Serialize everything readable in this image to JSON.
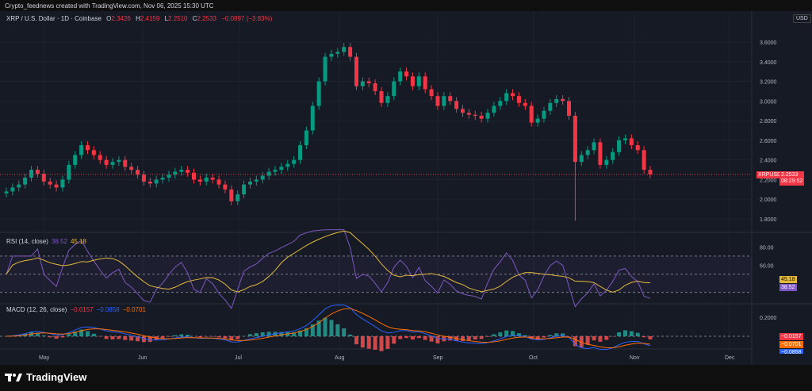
{
  "credit": "Crypto_feednews created with TradingView.com, Nov 06, 2025 15:30 UTC",
  "header": {
    "symbol": "XRP / U.S. Dollar · 1D · Coinbase",
    "o_label": "O",
    "o": "2.3426",
    "h_label": "H",
    "h": "2.4159",
    "l_label": "L",
    "l": "2.2510",
    "c_label": "C",
    "c": "2.2533",
    "change": "−0.0897 (−3.83%)",
    "currency": "USD"
  },
  "price_tag": {
    "symbol": "XRPUSD",
    "price": "2.2533",
    "countdown": "08:29:52"
  },
  "rsi": {
    "label": "RSI (14, close)",
    "value": "38.52",
    "ma": "45.18"
  },
  "macd": {
    "label": "MACD (12, 26, close)",
    "hist": "−0.0157",
    "macd": "−0.0858",
    "signal": "−0.0701"
  },
  "logo": "TradingView",
  "colors": {
    "up": "#089981",
    "down": "#f23645",
    "rsi": "#7e57c2",
    "rsi_ma": "#e2b93b",
    "macd": "#2962ff",
    "signal": "#ff6d00",
    "bg": "#161a25"
  },
  "chart_data": [
    {
      "type": "candlestick",
      "title": "XRP / U.S. Dollar · 1D · Coinbase",
      "ylim": [
        1.7,
        3.75
      ],
      "yticks": [
        "3.6000",
        "3.4000",
        "3.2000",
        "3.0000",
        "2.8000",
        "2.6000",
        "2.4000",
        "2.2000",
        "2.0000",
        "1.8000"
      ],
      "xticks": [
        "May",
        "Jun",
        "Jul",
        "Aug",
        "Sep",
        "Oct",
        "Nov",
        "Dec"
      ],
      "date_range": [
        "2025-04-24",
        "2025-11-06"
      ],
      "closes": [
        2.08,
        2.12,
        2.15,
        2.22,
        2.3,
        2.26,
        2.18,
        2.15,
        2.12,
        2.2,
        2.35,
        2.45,
        2.55,
        2.5,
        2.45,
        2.4,
        2.35,
        2.38,
        2.4,
        2.33,
        2.3,
        2.25,
        2.18,
        2.16,
        2.2,
        2.22,
        2.25,
        2.28,
        2.3,
        2.27,
        2.2,
        2.18,
        2.22,
        2.2,
        2.15,
        2.1,
        1.98,
        2.05,
        2.15,
        2.18,
        2.2,
        2.24,
        2.28,
        2.3,
        2.33,
        2.36,
        2.4,
        2.55,
        2.7,
        2.95,
        3.2,
        3.45,
        3.48,
        3.5,
        3.55,
        3.45,
        3.15,
        3.2,
        3.18,
        3.1,
        2.98,
        3.05,
        3.2,
        3.3,
        3.25,
        3.15,
        3.25,
        3.12,
        3.05,
        2.95,
        3.05,
        3.0,
        2.92,
        2.88,
        2.86,
        2.85,
        2.82,
        2.88,
        2.95,
        3.0,
        3.08,
        3.05,
        2.98,
        2.95,
        2.78,
        2.82,
        2.9,
        2.98,
        3.02,
        3.0,
        2.85,
        2.38,
        2.45,
        2.5,
        2.58,
        2.35,
        2.4,
        2.48,
        2.6,
        2.62,
        2.55,
        2.5,
        2.3,
        2.2533
      ],
      "notable_low": {
        "date": "2025-10-10",
        "value": 1.78
      }
    },
    {
      "type": "line",
      "title": "RSI (14, close)",
      "ylim": [
        20,
        90
      ],
      "yticks": [
        "80.00",
        "60.00"
      ],
      "bands": [
        30,
        70
      ],
      "last": [
        38.52,
        45.18
      ]
    },
    {
      "type": "bar+line",
      "title": "MACD (12, 26, close)",
      "yticks": [
        "0.2000"
      ],
      "last": {
        "histogram": -0.0157,
        "macd": -0.0858,
        "signal": -0.0701
      }
    }
  ]
}
